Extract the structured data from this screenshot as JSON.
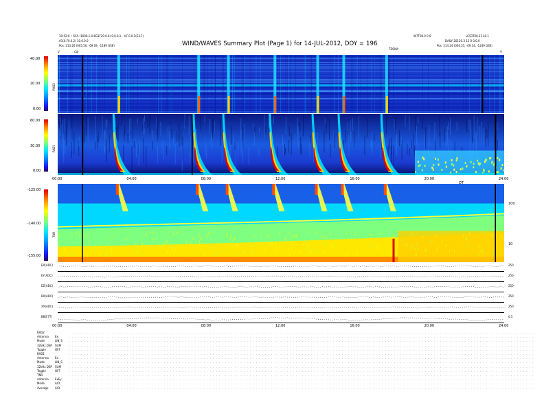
{
  "header": {
    "left_line1": "10:52:0 • 6CA (1000.1.0.6G1F20.0.6) 0.0.0.1 - 4.F.0 0.1(E3.F)",
    "left_line2": "A1(0.F0.0.2) 10.0.0.0",
    "left_line3": "Pos: 213.26 (005.50, -69.09, -1189 GSE)",
    "right_line1": "W7T00.0 0.0",
    "right_line2": "LCS3T00.11 L0.1",
    "right_line3": "DAILY 20120.3 12 0 0.0.0",
    "right_line4": "Pos: 214.24 (006.35, -69.14, -1249 GSE)",
    "title": "WIND/WAVES Summary Plot (Page 1) for 14-JUL-2012, DOY = 196",
    "cal_label": "Cal",
    "tds_label": "TDSMA",
    "corner_left": "V",
    "corner_right": "DT",
    "corner_right2": "V"
  },
  "colors": {
    "rad_background": "#1030c8",
    "tnr_background": "#00d8ff",
    "burst": "#dd0000"
  },
  "chart_data": [
    {
      "type": "heatmap",
      "name": "RAD2",
      "ylabel": "RAD2",
      "ylim": [
        0,
        40
      ],
      "yticks": [
        "40.00",
        "20.00",
        "0.00"
      ]
    },
    {
      "type": "heatmap",
      "name": "RAD1",
      "ylabel": "RAD1",
      "ylim": [
        0,
        60
      ],
      "yticks": [
        "60.00",
        "30.00",
        "0.00"
      ],
      "xticks": [
        "00:00",
        "04:00",
        "08:00",
        "12:00",
        "16:00",
        "20:00",
        "24:00"
      ],
      "x_hours": [
        0,
        4,
        8,
        12,
        16,
        20,
        24
      ],
      "burst_hours": [
        3.5,
        7.8,
        9.4,
        11.9,
        14.2,
        15.6,
        17.9
      ]
    },
    {
      "type": "heatmap",
      "name": "TNR",
      "ylabel": "TNR",
      "ylim": [
        -155,
        -125
      ],
      "yticks": [
        "-125.00",
        "-140.00",
        "-155.00"
      ],
      "right_ticks": [
        "100",
        "10"
      ],
      "top_right_label": "DT"
    },
    {
      "type": "line",
      "name": "TDS",
      "rows": [
        {
          "label": "EX(ADC)",
          "right": "250"
        },
        {
          "label": "EY(ADC)",
          "right": "250"
        },
        {
          "label": "EZ(ADC)",
          "right": "250"
        },
        {
          "label": "BX(ADC)",
          "right": "250"
        },
        {
          "label": "XX(ADC)",
          "right": "250"
        },
        {
          "label": "BB(F7T)",
          "right": "0.5"
        }
      ],
      "xticks": [
        "00:00",
        "04:00",
        "08:00",
        "12:00",
        "16:00",
        "20:00",
        "24:00"
      ],
      "x_hours": [
        0,
        4,
        8,
        12,
        16,
        20,
        24
      ]
    }
  ],
  "bottom_table": [
    {
      "label": "RAD2",
      "value": ""
    },
    {
      "label": "Antenna",
      "value": "Ex"
    },
    {
      "label": "Mode",
      "value": "LIN_S"
    },
    {
      "label": "32kHz DSP",
      "value": "SUM"
    },
    {
      "label": "Toggle",
      "value": "OFF"
    },
    {
      "label": "RAD1",
      "value": ""
    },
    {
      "label": "Antenna",
      "value": "Ex"
    },
    {
      "label": "Mode",
      "value": "LIN_S"
    },
    {
      "label": "32kHz DSP",
      "value": "SUM"
    },
    {
      "label": "Toggle",
      "value": "OFF"
    },
    {
      "label": "TNR",
      "value": ""
    },
    {
      "label": "Antenna",
      "value": "ExEy"
    },
    {
      "label": "Mode",
      "value": "A/D"
    },
    {
      "label": "Average",
      "value": "A/D"
    }
  ]
}
